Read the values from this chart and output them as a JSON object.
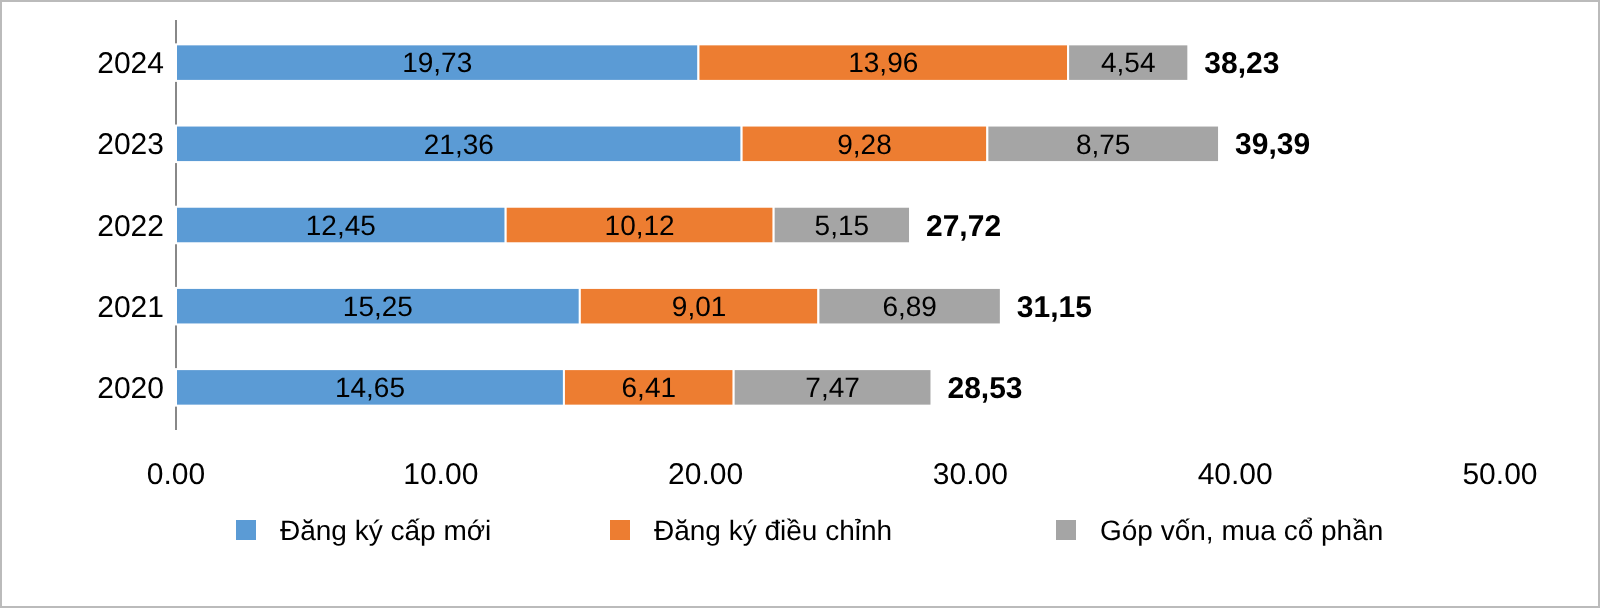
{
  "chart_data": {
    "type": "bar",
    "orientation": "horizontal",
    "stacked": true,
    "categories": [
      "2024",
      "2023",
      "2022",
      "2021",
      "2020"
    ],
    "series": [
      {
        "name": "Đăng ký cấp mới",
        "color": "#5b9bd5",
        "values": [
          19.73,
          21.36,
          12.45,
          15.25,
          14.65
        ],
        "value_labels": [
          "19,73",
          "21,36",
          "12,45",
          "15,25",
          "14,65"
        ]
      },
      {
        "name": "Đăng ký điều chỉnh",
        "color": "#ed7d31",
        "values": [
          13.96,
          9.28,
          10.12,
          9.01,
          6.41
        ],
        "value_labels": [
          "13,96",
          "9,28",
          "10,12",
          "9,01",
          "6,41"
        ]
      },
      {
        "name": "Góp vốn, mua cổ phần",
        "color": "#a5a5a5",
        "values": [
          4.54,
          8.75,
          5.15,
          6.89,
          7.47
        ],
        "value_labels": [
          "4,54",
          "8,75",
          "5,15",
          "6,89",
          "7,47"
        ]
      }
    ],
    "totals": [
      "38,23",
      "39,39",
      "27,72",
      "31,15",
      "28,53"
    ],
    "xlim": [
      0,
      50
    ],
    "xticks": [
      {
        "value": 0,
        "label": "0.00"
      },
      {
        "value": 10,
        "label": "10.00"
      },
      {
        "value": 20,
        "label": "20.00"
      },
      {
        "value": 30,
        "label": "30.00"
      },
      {
        "value": 40,
        "label": "40.00"
      },
      {
        "value": 50,
        "label": "50.00"
      }
    ],
    "grid": false,
    "legend": "bottom"
  }
}
